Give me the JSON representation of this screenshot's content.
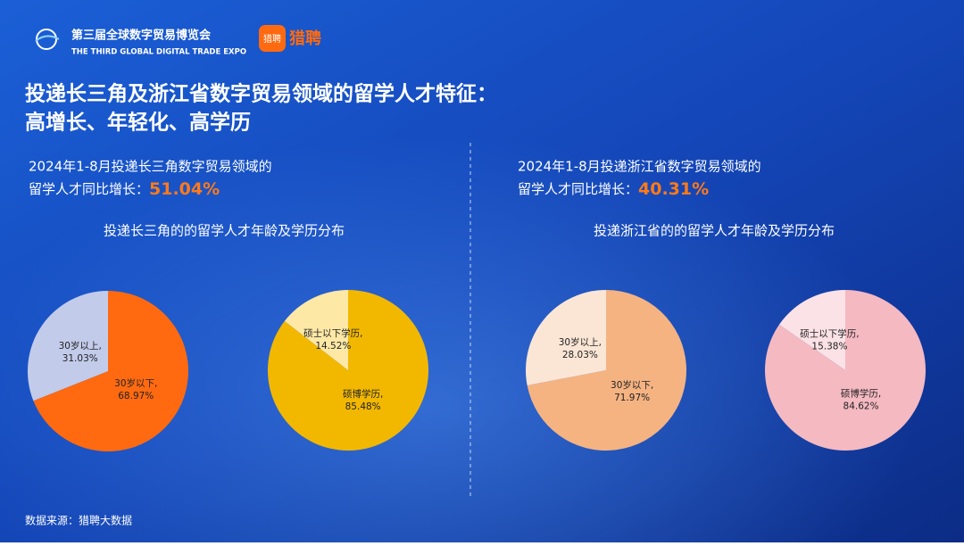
{
  "header": {
    "expo_title": "第三届全球数字贸易博览会",
    "expo_subtitle": "THE THIRD GLOBAL DIGITAL TRADE EXPO",
    "partner_icon": "猎聘",
    "partner_name": "猎聘"
  },
  "headline": [
    "投递长三角及浙江省数字贸易领域的留学人才特征：",
    "高增长、年轻化、高学历"
  ],
  "panels": [
    {
      "stat_line1": "2024年1-8月投递长三角数字贸易领域的",
      "stat_line2": "留学人才同比增长：",
      "stat_value": "51.04%",
      "subtitle": "投递长三角的的留学人才年龄及学历分布"
    },
    {
      "stat_line1": "2024年1-8月投递浙江省数字贸易领域的",
      "stat_line2": "留学人才同比增长：",
      "stat_value": "40.31%",
      "subtitle": "投递浙江省的的留学人才年龄及学历分布"
    }
  ],
  "source": "数据来源：猎聘大数据",
  "chart_data": [
    {
      "type": "pie",
      "categories": [
        "30岁以下,",
        "30岁以上,"
      ],
      "values": [
        68.97,
        31.03
      ],
      "value_labels": [
        "68.97%",
        "31.03%"
      ],
      "colors": [
        "#ff6a10",
        "#c3cbea"
      ]
    },
    {
      "type": "pie",
      "categories": [
        "硕博学历,",
        "硕士以下学历,"
      ],
      "values": [
        85.48,
        14.52
      ],
      "value_labels": [
        "85.48%",
        "14.52%"
      ],
      "colors": [
        "#f2b800",
        "#fde8a6"
      ]
    },
    {
      "type": "pie",
      "categories": [
        "30岁以下,",
        "30岁以上,"
      ],
      "values": [
        71.97,
        28.03
      ],
      "value_labels": [
        "71.97%",
        "28.03%"
      ],
      "colors": [
        "#f5b382",
        "#fbe6d6"
      ]
    },
    {
      "type": "pie",
      "categories": [
        "硕博学历,",
        "硕士以下学历,"
      ],
      "values": [
        84.62,
        15.38
      ],
      "value_labels": [
        "84.62%",
        "15.38%"
      ],
      "colors": [
        "#f5b9c2",
        "#fbe2e6"
      ]
    }
  ]
}
